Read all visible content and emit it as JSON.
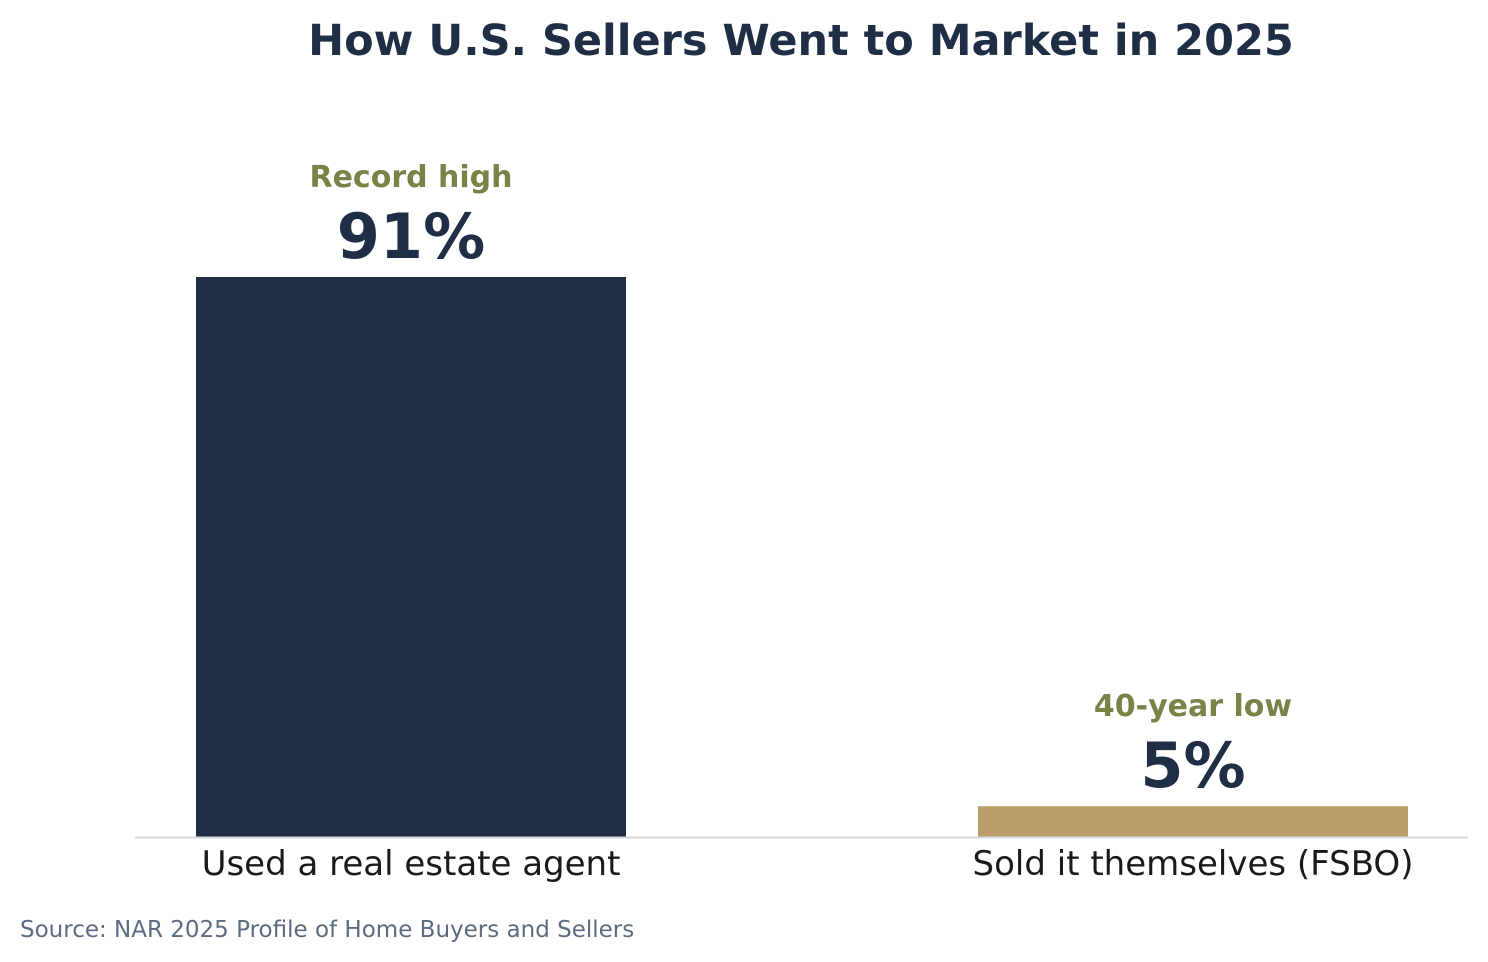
{
  "chart_data": {
    "type": "bar",
    "title": "How U.S. Sellers Went to Market in 2025",
    "xlabel": "",
    "ylabel": "",
    "ylim": [
      0,
      100
    ],
    "grid": false,
    "categories": [
      "Used a real estate agent",
      "Sold it themselves (FSBO)"
    ],
    "values": [
      91,
      5
    ],
    "value_labels": [
      "91%",
      "5%"
    ],
    "annotations": [
      "Record high",
      "40-year low"
    ],
    "bar_colors": [
      "#1f2e44",
      "#bc9d6a"
    ],
    "source": "Source: NAR 2025 Profile of Home Buyers and Sellers"
  },
  "colors": {
    "title": "#1f2e44",
    "value_label": "#1f2e44",
    "annotation": "#7a8248",
    "category_label": "#1a1a1a",
    "source": "#5c6b80",
    "baseline": "#d5d9e0"
  }
}
